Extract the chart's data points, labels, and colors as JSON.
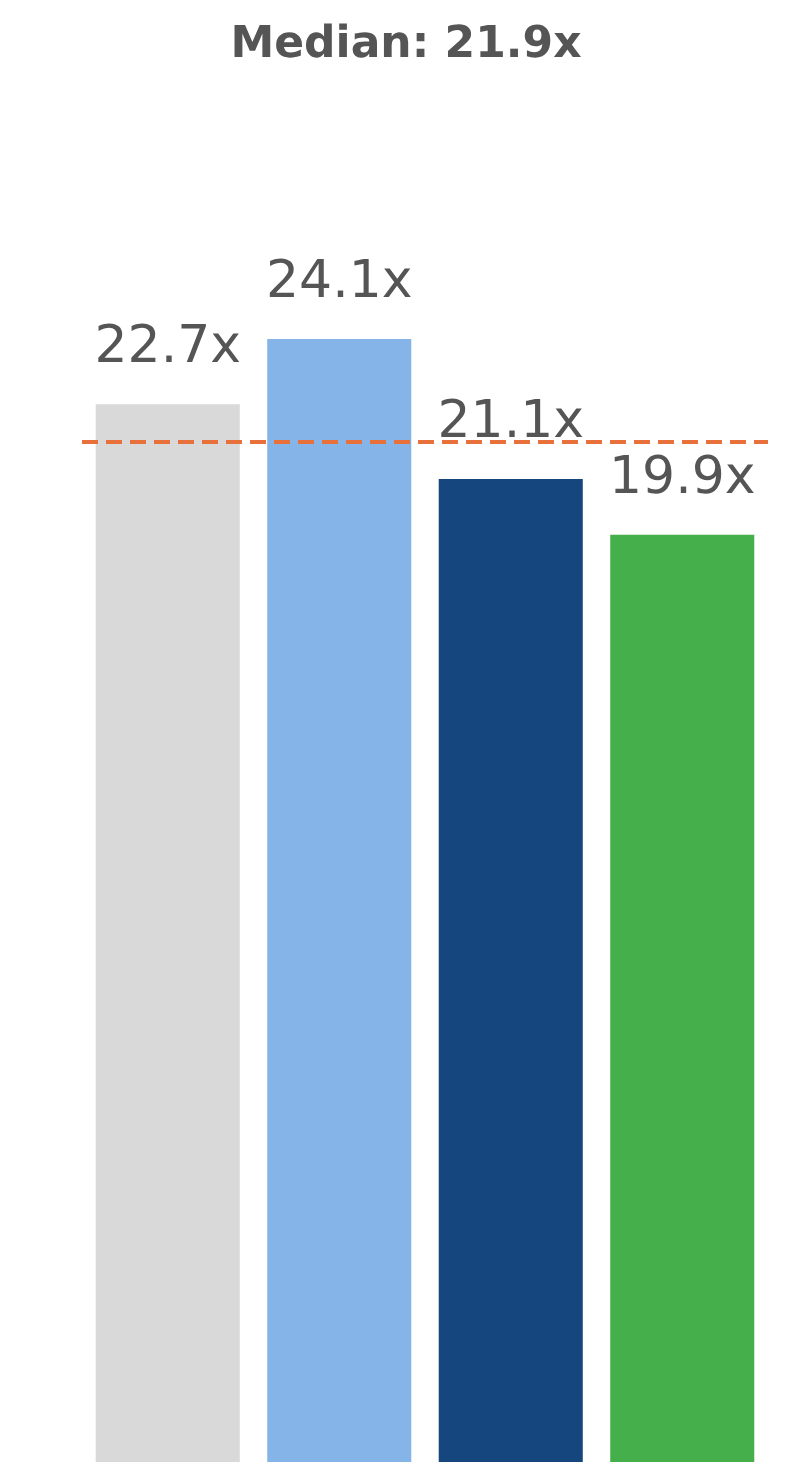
{
  "chart_data": {
    "type": "bar",
    "title": "Median: 21.9x",
    "categories": [
      null,
      null,
      null,
      null
    ],
    "values": [
      22.7,
      24.1,
      21.1,
      19.9
    ],
    "colors": [
      "#d9d9d9",
      "#85b5e8",
      "#15467d",
      "#45b04b"
    ],
    "value_labels": [
      "22.7x",
      "24.1x",
      "21.1x",
      "19.9x"
    ],
    "tick_labels": false,
    "grid": false,
    "ref_lines": [
      {
        "axis": "y",
        "value": 21.9,
        "color": "#e8703a",
        "line_style": "dashed"
      }
    ]
  }
}
